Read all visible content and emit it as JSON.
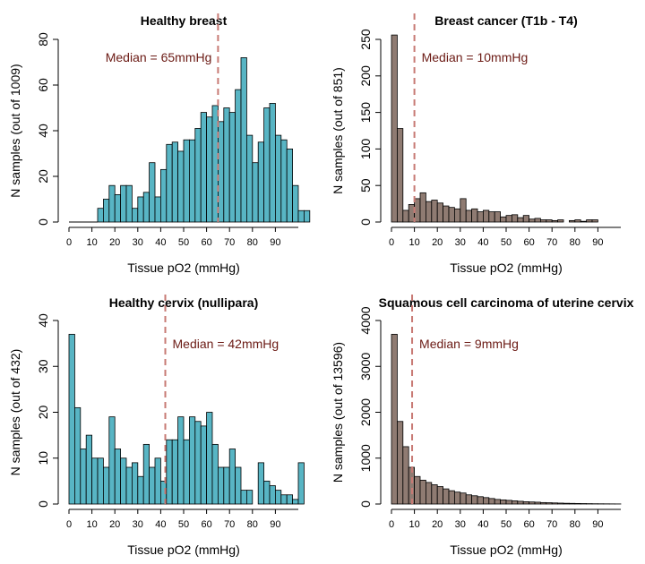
{
  "colors": {
    "healthy": "#58b5c4",
    "cancer": "#8f7b72",
    "median": "#c87a74",
    "median_text": "#6b1a14"
  },
  "chart_data": [
    {
      "type": "bar",
      "title": "Healthy breast",
      "xlabel": "Tissue pO2 (mmHg)",
      "ylabel": "N samples (out of 1009)",
      "median_label": "Median = 65mmHg",
      "median": 65,
      "xlim": [
        0,
        100
      ],
      "ylim": [
        0,
        80
      ],
      "yticks": [
        0,
        20,
        40,
        60,
        80
      ],
      "xticks": [
        0,
        10,
        20,
        30,
        40,
        50,
        60,
        70,
        80,
        90
      ],
      "bin_width": 2.5,
      "bar_start": 12.5,
      "color": "healthy",
      "values": [
        6,
        10,
        16,
        12,
        16,
        16,
        6,
        11,
        13,
        26,
        11,
        23,
        34,
        35,
        31,
        36,
        36,
        41,
        48,
        46,
        51,
        44,
        50,
        48,
        58,
        72,
        38,
        26,
        35,
        50,
        52,
        38,
        36,
        32,
        16,
        5,
        5
      ]
    },
    {
      "type": "bar",
      "title": "Breast cancer (T1b - T4)",
      "xlabel": "Tissue pO2 (mmHg)",
      "ylabel": "N samples (out of 851)",
      "median_label": "Median = 10mmHg",
      "median": 10,
      "xlim": [
        0,
        100
      ],
      "ylim": [
        0,
        250
      ],
      "yticks": [
        0,
        50,
        100,
        150,
        200,
        250
      ],
      "xticks": [
        0,
        10,
        20,
        30,
        40,
        50,
        60,
        70,
        80,
        90
      ],
      "bin_width": 2.5,
      "bar_start": 0,
      "color": "cancer",
      "values": [
        256,
        128,
        16,
        24,
        32,
        40,
        28,
        30,
        26,
        22,
        20,
        18,
        32,
        16,
        18,
        14,
        16,
        14,
        14,
        7,
        9,
        10,
        6,
        9,
        4,
        5,
        3,
        3,
        2,
        3,
        0,
        2,
        3,
        1,
        3,
        3
      ]
    },
    {
      "type": "bar",
      "title": "Healthy cervix (nullipara)",
      "xlabel": "Tissue pO2 (mmHg)",
      "ylabel": "N samples (out of 432)",
      "median_label": "Median = 42mmHg",
      "median": 42,
      "xlim": [
        0,
        100
      ],
      "ylim": [
        0,
        40
      ],
      "yticks": [
        0,
        10,
        20,
        30,
        40
      ],
      "xticks": [
        0,
        10,
        20,
        30,
        40,
        50,
        60,
        70,
        80,
        90
      ],
      "bin_width": 2.5,
      "bar_start": 0,
      "color": "healthy",
      "values": [
        37,
        21,
        12,
        15,
        10,
        10,
        8,
        19,
        12,
        10,
        8,
        9,
        6,
        13,
        8,
        10,
        5,
        14,
        14,
        19,
        14,
        19,
        18,
        17,
        20,
        13,
        8,
        8,
        12,
        8,
        3,
        3,
        0,
        9,
        5,
        4,
        3,
        2,
        2,
        1,
        9
      ]
    },
    {
      "type": "bar",
      "title": "Squamous cell carcinoma of uterine cervix",
      "xlabel": "Tissue pO2 (mmHg)",
      "ylabel": "N samples (out of 13596)",
      "median_label": "Median = 9mmHg",
      "median": 9,
      "xlim": [
        0,
        100
      ],
      "ylim": [
        0,
        4000
      ],
      "yticks": [
        0,
        1000,
        2000,
        3000,
        4000
      ],
      "xticks": [
        0,
        10,
        20,
        30,
        40,
        50,
        60,
        70,
        80,
        90
      ],
      "bin_width": 2.5,
      "bar_start": 0,
      "color": "cancer",
      "values": [
        3700,
        1800,
        1250,
        800,
        600,
        520,
        470,
        420,
        380,
        330,
        290,
        260,
        240,
        200,
        180,
        160,
        140,
        120,
        100,
        90,
        80,
        70,
        60,
        50,
        45,
        40,
        32,
        28,
        24,
        20,
        16,
        14,
        12,
        10,
        8,
        6,
        5,
        4,
        3,
        2
      ]
    }
  ]
}
